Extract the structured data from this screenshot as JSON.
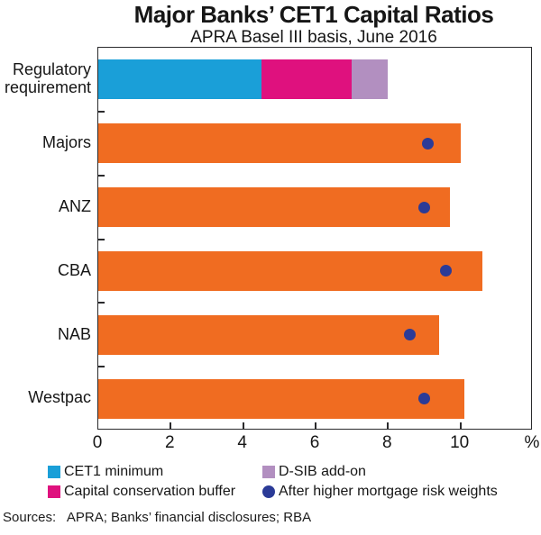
{
  "title": "Major Banks’ CET1 Capital Ratios",
  "subtitle": "APRA Basel III basis, June 2016",
  "sources_line": "Sources:   APRA; Banks’ financial disclosures; RBA",
  "colors": {
    "cet1_minimum": "#1A9FD8",
    "capital_conservation_buffer": "#DF117E",
    "dsib_addon": "#B28FC0",
    "bank_bar_orange": "#F06C21",
    "mortgage_dot_navy": "#2B3B97",
    "frame": "#2a2a2c"
  },
  "chart_data": {
    "type": "bar",
    "orientation": "horizontal",
    "title": "Major Banks’ CET1 Capital Ratios",
    "subtitle": "APRA Basel III basis, June 2016",
    "x_axis": {
      "min": 0,
      "max": 12,
      "ticks": [
        0,
        2,
        4,
        6,
        8,
        10
      ],
      "unit_label": "%",
      "grid": false
    },
    "categories": [
      "Regulatory requirement",
      "Majors",
      "ANZ",
      "CBA",
      "NAB",
      "Westpac"
    ],
    "regulatory_stack": [
      {
        "name": "CET1 minimum",
        "value": 4.5,
        "color": "#1A9FD8"
      },
      {
        "name": "Capital conservation buffer",
        "value": 2.5,
        "color": "#DF117E"
      },
      {
        "name": "D-SIB add-on",
        "value": 1.0,
        "color": "#B28FC0"
      }
    ],
    "series": [
      {
        "name": "CET1 capital ratio",
        "style": "bar",
        "color": "#F06C21",
        "values": {
          "Majors": 10.0,
          "ANZ": 9.7,
          "CBA": 10.6,
          "NAB": 9.4,
          "Westpac": 10.1
        }
      },
      {
        "name": "After higher mortgage risk weights",
        "style": "dot",
        "color": "#2B3B97",
        "values": {
          "Majors": 9.1,
          "ANZ": 9.0,
          "CBA": 9.6,
          "NAB": 8.6,
          "Westpac": 9.0
        }
      }
    ],
    "legend": [
      {
        "label": "CET1 minimum",
        "swatch": "square",
        "color": "#1A9FD8"
      },
      {
        "label": "Capital conservation buffer",
        "swatch": "square",
        "color": "#DF117E"
      },
      {
        "label": "D-SIB add-on",
        "swatch": "square",
        "color": "#B28FC0"
      },
      {
        "label": "After higher mortgage risk weights",
        "swatch": "circle",
        "color": "#2B3B97"
      }
    ],
    "legend_position": "bottom"
  }
}
